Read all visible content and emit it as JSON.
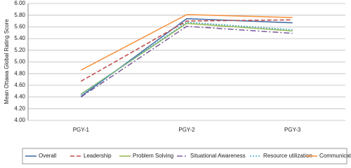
{
  "chart_data": {
    "type": "line",
    "y_label": "Mean Ottawa Global Rating Score",
    "categories": [
      "PGY-1",
      "PGY-2",
      "PGY-3"
    ],
    "series": [
      {
        "name": "Overall",
        "color": "#4a6fa5",
        "dash": "solid",
        "values": [
          4.41,
          5.74,
          5.67
        ]
      },
      {
        "name": "Leadership",
        "color": "#c0504d",
        "dash": "dashed",
        "values": [
          4.67,
          5.7,
          5.72
        ]
      },
      {
        "name": "Problem Solving",
        "color": "#9bbb59",
        "dash": "solid",
        "values": [
          4.45,
          5.66,
          5.53
        ]
      },
      {
        "name": "Situational Awareness",
        "color": "#7f64a0",
        "dash": "dashdot",
        "values": [
          4.4,
          5.61,
          5.49
        ]
      },
      {
        "name": "Resource utilization",
        "color": "#4bacc6",
        "dash": "dotted",
        "values": [
          4.44,
          5.68,
          5.55
        ]
      },
      {
        "name": "Communication",
        "color": "#f79646",
        "dash": "solid",
        "values": [
          4.86,
          5.81,
          5.76
        ]
      }
    ],
    "ylim": [
      4.0,
      6.0
    ],
    "yticks": [
      {
        "value": 4.0,
        "label": "4.00"
      },
      {
        "value": 4.2,
        "label": "4.20"
      },
      {
        "value": 4.4,
        "label": "4.40"
      },
      {
        "value": 4.6,
        "label": "4.60"
      },
      {
        "value": 4.8,
        "label": "4.80"
      },
      {
        "value": 5.0,
        "label": "5.00"
      },
      {
        "value": 5.2,
        "label": "5.20"
      },
      {
        "value": 5.4,
        "label": "5.40"
      },
      {
        "value": 5.6,
        "label": "5.60"
      },
      {
        "value": 5.8,
        "label": "5.80"
      },
      {
        "value": 6.0,
        "label": "6.00"
      }
    ],
    "grid": true
  }
}
